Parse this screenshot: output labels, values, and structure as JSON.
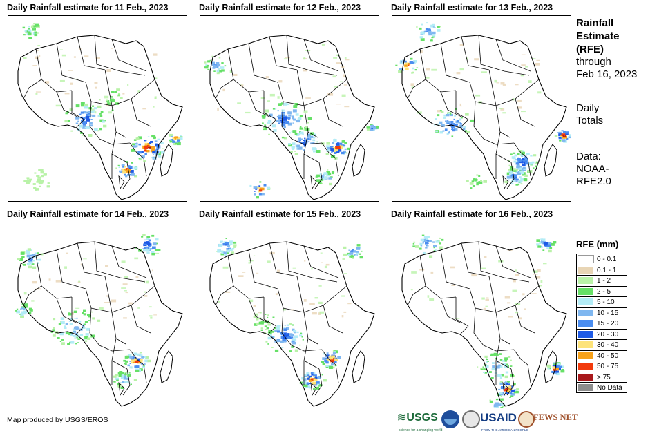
{
  "panels": [
    {
      "title": "Daily Rainfall estimate for 11 Feb., 2023"
    },
    {
      "title": "Daily Rainfall estimate for 12 Feb., 2023"
    },
    {
      "title": "Daily Rainfall estimate for 13 Feb., 2023"
    },
    {
      "title": "Daily Rainfall estimate for 14 Feb., 2023"
    },
    {
      "title": "Daily Rainfall estimate for 15 Feb., 2023"
    },
    {
      "title": "Daily Rainfall estimate for 16 Feb., 2023"
    }
  ],
  "sidebar": {
    "title_line1": "Rainfall",
    "title_line2": "Estimate",
    "title_line3": "(RFE)",
    "through_line1": "through",
    "through_line2": "Feb 16, 2023",
    "totals_line1": "Daily",
    "totals_line2": "Totals",
    "data_line1": "Data:",
    "data_line2": "NOAA-",
    "data_line3": "RFE2.0"
  },
  "legend": {
    "title": "RFE (mm)",
    "items": [
      {
        "label": "0 - 0.1",
        "color": "#ffffff"
      },
      {
        "label": "0.1 - 1",
        "color": "#e8d5b5"
      },
      {
        "label": "1 - 2",
        "color": "#b9f2a8"
      },
      {
        "label": "2 - 5",
        "color": "#66e067"
      },
      {
        "label": "5 - 10",
        "color": "#b3ecf6"
      },
      {
        "label": "10 - 15",
        "color": "#7fb7f0"
      },
      {
        "label": "15 - 20",
        "color": "#4a8df0"
      },
      {
        "label": "20 - 30",
        "color": "#1e5ae6"
      },
      {
        "label": "30 - 40",
        "color": "#fde37a"
      },
      {
        "label": "40 - 50",
        "color": "#f7a21a"
      },
      {
        "label": "50 - 75",
        "color": "#f23a0c"
      },
      {
        "label": "> 75",
        "color": "#a8181c"
      },
      {
        "label": "No Data",
        "color": "#8c8c8c"
      }
    ]
  },
  "credit": "Map produced by USGS/EROS",
  "logos": {
    "usgs": "≋USGS",
    "usgs_sub": "science for a changing world",
    "usaid": "USAID",
    "usaid_sub": "FROM THE AMERICAN PEOPLE",
    "fews": "FEWS NET"
  }
}
